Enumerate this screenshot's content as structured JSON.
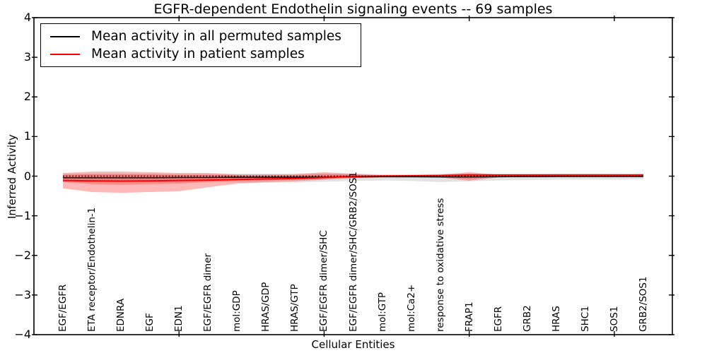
{
  "figure": {
    "title": "EGFR-dependent Endothelin signaling events -- 69 samples",
    "xlabel": "Cellular Entities",
    "ylabel": "Inferred Activity"
  },
  "legend": {
    "items": [
      {
        "label": "Mean activity in all permuted samples",
        "color": "#000000"
      },
      {
        "label": "Mean activity in patient samples",
        "color": "#ff0000"
      }
    ]
  },
  "chart_data": {
    "type": "line",
    "title": "EGFR-dependent Endothelin signaling events -- 69 samples",
    "xlabel": "Cellular Entities",
    "ylabel": "Inferred Activity",
    "ylim": [
      -4,
      4
    ],
    "yticks": [
      -4,
      -3,
      -2,
      -1,
      0,
      1,
      2,
      3,
      4
    ],
    "ytick_labels": [
      "−4",
      "−3",
      "−2",
      "−1",
      "0",
      "1",
      "2",
      "3",
      "4"
    ],
    "xtick_positions": [
      5,
      10,
      15,
      20
    ],
    "grid": false,
    "legend_position": "upper left",
    "zero_line": 0,
    "categories": [
      "EGF/EGFR",
      "ETA receptor/Endothelin-1",
      "EDNRA",
      "EGF",
      "EDN1",
      "EGF/EGFR dimer",
      "mol:GDP",
      "HRAS/GDP",
      "HRAS/GTP",
      "EGF/EGFR dimer/SHC",
      "EGF/EGFR dimer/SHC/GRB2/SOS1",
      "mol:GTP",
      "mol:Ca2+",
      "response to oxidative stress",
      "FRAP1",
      "EGFR",
      "GRB2",
      "HRAS",
      "SHC1",
      "SOS1",
      "GRB2/SOS1"
    ],
    "series": [
      {
        "name": "Mean activity in all permuted samples",
        "color": "#000000",
        "line_width": 1.5,
        "values": [
          -0.04,
          -0.04,
          -0.04,
          -0.04,
          -0.035,
          -0.035,
          -0.03,
          -0.03,
          -0.03,
          -0.025,
          -0.02,
          -0.015,
          -0.015,
          -0.02,
          -0.02,
          -0.015,
          -0.012,
          -0.01,
          -0.01,
          -0.01,
          -0.01
        ]
      },
      {
        "name": "Mean activity in patient samples",
        "color": "#ff0000",
        "line_width": 2,
        "values": [
          -0.11,
          -0.12,
          -0.125,
          -0.12,
          -0.11,
          -0.1,
          -0.085,
          -0.07,
          -0.06,
          -0.035,
          -0.01,
          0.005,
          0.01,
          0.015,
          0.03,
          0.03,
          0.03,
          0.03,
          0.03,
          0.03,
          0.03
        ]
      }
    ],
    "bands": [
      {
        "name": "permuted-samples-range",
        "color": "#000000",
        "opacity": 0.11,
        "hi": [
          0.06,
          0.07,
          0.07,
          0.07,
          0.06,
          0.06,
          0.06,
          0.06,
          0.06,
          0.07,
          0.06,
          0.05,
          0.05,
          0.06,
          0.07,
          0.06,
          0.06,
          0.07,
          0.07,
          0.07,
          0.06
        ],
        "lo": [
          -0.12,
          -0.13,
          -0.14,
          -0.13,
          -0.13,
          -0.14,
          -0.16,
          -0.17,
          -0.16,
          -0.14,
          -0.12,
          -0.11,
          -0.12,
          -0.15,
          -0.13,
          -0.11,
          -0.1,
          -0.09,
          -0.09,
          -0.09,
          -0.08
        ]
      },
      {
        "name": "patient-samples-range-outer",
        "color": "#ff0000",
        "opacity": 0.28,
        "hi": [
          0.08,
          0.115,
          0.115,
          0.1,
          0.08,
          0.08,
          0.045,
          0.045,
          0.05,
          0.1,
          0.06,
          0.025,
          0.025,
          0.035,
          0.1,
          0.035,
          0.03,
          0.035,
          0.035,
          0.045,
          0.05
        ],
        "lo": [
          -0.31,
          -0.4,
          -0.42,
          -0.4,
          -0.38,
          -0.28,
          -0.19,
          -0.15,
          -0.13,
          -0.09,
          -0.05,
          -0.03,
          -0.03,
          -0.035,
          -0.115,
          -0.03,
          -0.02,
          -0.02,
          -0.02,
          -0.02,
          -0.02
        ]
      },
      {
        "name": "patient-samples-range-inner",
        "color": "#ff0000",
        "opacity": 0.24,
        "hi": [
          0.03,
          0.045,
          0.045,
          0.04,
          0.03,
          0.03,
          0.02,
          0.01,
          0.02,
          0.05,
          0.035,
          0.015,
          0.015,
          0.015,
          0.06,
          0.015,
          0.015,
          0.015,
          0.015,
          0.025,
          0.025
        ],
        "lo": [
          -0.15,
          -0.2,
          -0.22,
          -0.2,
          -0.19,
          -0.15,
          -0.115,
          -0.1,
          -0.09,
          -0.06,
          -0.045,
          -0.02,
          -0.02,
          -0.02,
          -0.07,
          -0.02,
          -0.015,
          -0.015,
          -0.015,
          -0.015,
          -0.015
        ]
      }
    ]
  }
}
